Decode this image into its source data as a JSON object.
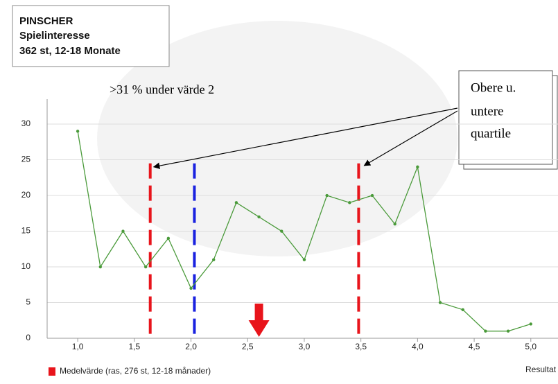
{
  "chart_data": {
    "type": "line",
    "title_lines": [
      "PINSCHER",
      "Spielinteresse",
      "362 st, 12-18 Monate"
    ],
    "annotation": ">31 % under värde 2",
    "callout_lines": [
      "Obere u.",
      "untere",
      "quartile"
    ],
    "xlabel": "Resultat",
    "x": [
      1.0,
      1.2,
      1.4,
      1.6,
      1.8,
      2.0,
      2.2,
      2.4,
      2.6,
      2.8,
      3.0,
      3.2,
      3.4,
      3.6,
      3.8,
      4.0,
      4.2,
      4.4,
      4.6,
      4.8,
      5.0
    ],
    "values": [
      29,
      10,
      15,
      10,
      14,
      7,
      11,
      19,
      17,
      15,
      11,
      20,
      19,
      20,
      16,
      24,
      5,
      4,
      1,
      1,
      2
    ],
    "color": "#4a9a3a",
    "xlim": [
      0.73,
      5.24
    ],
    "ylim": [
      0,
      33.5
    ],
    "xticks": [
      {
        "value": 1.0,
        "label": "1,0"
      },
      {
        "value": 1.5,
        "label": "1,5"
      },
      {
        "value": 2.0,
        "label": "2,0"
      },
      {
        "value": 2.5,
        "label": "2,5"
      },
      {
        "value": 3.0,
        "label": "3,0"
      },
      {
        "value": 3.5,
        "label": "3,5"
      },
      {
        "value": 4.0,
        "label": "4,0"
      },
      {
        "value": 4.5,
        "label": "4,5"
      },
      {
        "value": 5.0,
        "label": "5,0"
      }
    ],
    "yticks": [
      0,
      5,
      10,
      15,
      20,
      25,
      30
    ],
    "grid": true,
    "quartiles": [
      {
        "x": 1.64,
        "color": "#e8141b"
      },
      {
        "x": 3.48,
        "color": "#e8141b"
      }
    ],
    "reference": {
      "x": 2.03,
      "color": "#1a22e0"
    },
    "mean": {
      "name": "Medelvärde (ras, 276 st, 12-18 månader)",
      "x": 2.6,
      "color": "#e8141b"
    }
  }
}
